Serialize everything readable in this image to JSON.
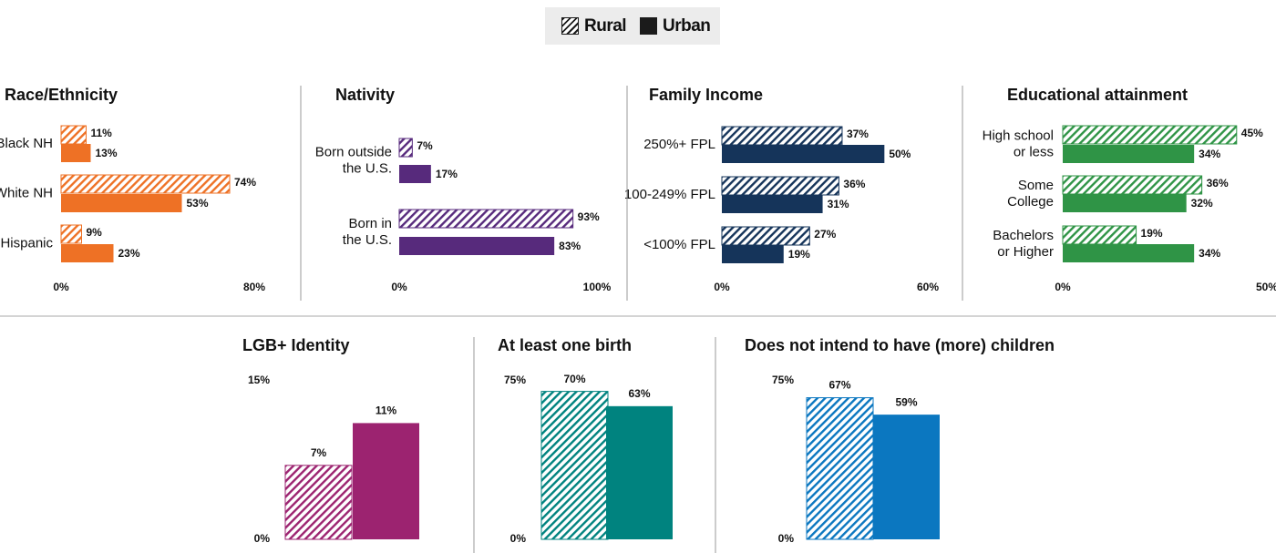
{
  "legend": {
    "rural_label": "Rural",
    "urban_label": "Urban"
  },
  "colors": {
    "race": "#ee7125",
    "nativity": "#572a7c",
    "income": "#15345a",
    "education": "#2f9446",
    "lgb": "#9c2370",
    "birth": "#00837f",
    "intend": "#0b77c0",
    "text": "#111111",
    "divider": "#999999"
  },
  "chart_data": [
    {
      "type": "bar",
      "orientation": "horizontal",
      "title": "Race/Ethnicity",
      "categories": [
        "Black NH",
        "White NH",
        "Hispanic"
      ],
      "series": [
        {
          "name": "Rural",
          "values": [
            11,
            74,
            9
          ],
          "labels": [
            "11%",
            "74%",
            "9%"
          ]
        },
        {
          "name": "Urban",
          "values": [
            13,
            53,
            23
          ],
          "labels": [
            "13%",
            "53%",
            "23%"
          ]
        }
      ],
      "xlim": [
        0,
        80
      ],
      "axis_labels": [
        "0%",
        "80%"
      ]
    },
    {
      "type": "bar",
      "orientation": "horizontal",
      "title": "Nativity",
      "categories": [
        "Born outside the U.S.",
        "Born in the U.S."
      ],
      "series": [
        {
          "name": "Rural",
          "values": [
            7,
            93
          ],
          "labels": [
            "7%",
            "93%"
          ]
        },
        {
          "name": "Urban",
          "values": [
            17,
            83
          ],
          "labels": [
            "17%",
            "83%"
          ]
        }
      ],
      "xlim": [
        0,
        100
      ],
      "axis_labels": [
        "0%",
        "100%"
      ]
    },
    {
      "type": "bar",
      "orientation": "horizontal",
      "title": "Family Income",
      "categories": [
        "250%+ FPL",
        "100-249% FPL",
        "<100% FPL"
      ],
      "series": [
        {
          "name": "Rural",
          "values": [
            37,
            36,
            27
          ],
          "labels": [
            "37%",
            "36%",
            "27%"
          ]
        },
        {
          "name": "Urban",
          "values": [
            50,
            31,
            19
          ],
          "labels": [
            "50%",
            "31%",
            "19%"
          ]
        }
      ],
      "xlim": [
        0,
        60
      ],
      "axis_labels": [
        "0%",
        "60%"
      ]
    },
    {
      "type": "bar",
      "orientation": "horizontal",
      "title": "Educational attainment",
      "categories": [
        "High school or less",
        "Some College",
        "Bachelors or Higher"
      ],
      "series": [
        {
          "name": "Rural",
          "values": [
            45,
            36,
            19
          ],
          "labels": [
            "45%",
            "36%",
            "19%"
          ]
        },
        {
          "name": "Urban",
          "values": [
            34,
            32,
            34
          ],
          "labels": [
            "34%",
            "32%",
            "34%"
          ]
        }
      ],
      "xlim": [
        0,
        50
      ],
      "axis_labels": [
        "0%",
        "50%"
      ]
    },
    {
      "type": "bar",
      "orientation": "vertical",
      "title": "LGB+ Identity",
      "series": [
        {
          "name": "Rural",
          "values": [
            7
          ],
          "labels": [
            "7%"
          ]
        },
        {
          "name": "Urban",
          "values": [
            11
          ],
          "labels": [
            "11%"
          ]
        }
      ],
      "ylim": [
        0,
        15
      ],
      "axis_labels": [
        "15%",
        "0%"
      ]
    },
    {
      "type": "bar",
      "orientation": "vertical",
      "title": "At least one birth",
      "series": [
        {
          "name": "Rural",
          "values": [
            70
          ],
          "labels": [
            "70%"
          ]
        },
        {
          "name": "Urban",
          "values": [
            63
          ],
          "labels": [
            "63%"
          ]
        }
      ],
      "ylim": [
        0,
        75
      ],
      "axis_labels": [
        "75%",
        "0%"
      ]
    },
    {
      "type": "bar",
      "orientation": "vertical",
      "title": "Does not intend to have (more) children",
      "series": [
        {
          "name": "Rural",
          "values": [
            67
          ],
          "labels": [
            "67%"
          ]
        },
        {
          "name": "Urban",
          "values": [
            59
          ],
          "labels": [
            "59%"
          ]
        }
      ],
      "ylim": [
        0,
        75
      ],
      "axis_labels": [
        "75%",
        "0%"
      ]
    }
  ]
}
